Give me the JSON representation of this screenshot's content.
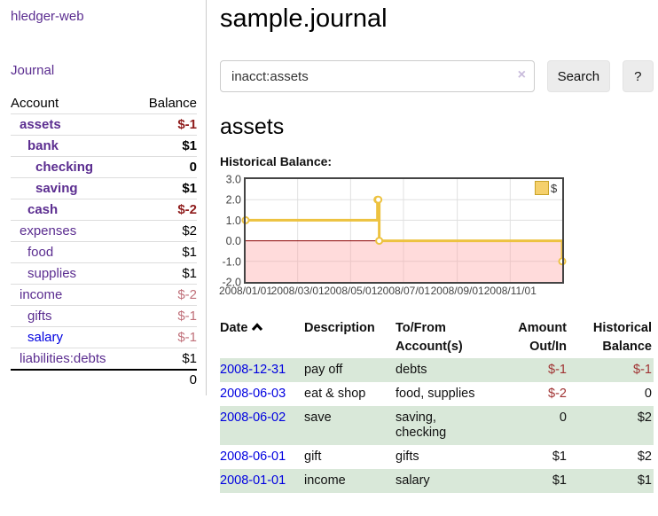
{
  "app": {
    "brand": "hledger-web",
    "nav_journal": "Journal"
  },
  "sidebar": {
    "headers": {
      "account": "Account",
      "balance": "Balance"
    },
    "accounts": [
      {
        "name": "assets",
        "balance": "$-1"
      },
      {
        "name": "bank",
        "balance": "$1"
      },
      {
        "name": "checking",
        "balance": "0"
      },
      {
        "name": "saving",
        "balance": "$1"
      },
      {
        "name": "cash",
        "balance": "$-2"
      },
      {
        "name": "expenses",
        "balance": "$2"
      },
      {
        "name": "food",
        "balance": "$1"
      },
      {
        "name": "supplies",
        "balance": "$1"
      },
      {
        "name": "income",
        "balance": "$-2"
      },
      {
        "name": "gifts",
        "balance": "$-1"
      },
      {
        "name": "salary",
        "balance": "$-1"
      },
      {
        "name": "liabilities:debts",
        "balance": "$1"
      }
    ],
    "total": "0"
  },
  "header": {
    "title": "sample.journal"
  },
  "search": {
    "value": "inacct:assets",
    "clear_icon": "×",
    "search_button": "Search",
    "help_button": "?"
  },
  "account_page": {
    "heading": "assets",
    "chart_title": "Historical Balance:"
  },
  "chart_data": {
    "type": "line",
    "style": "step",
    "title": "Historical Balance",
    "series": [
      {
        "name": "$",
        "color": "#edc240",
        "points": [
          {
            "date": "2008-01-01",
            "day": 0,
            "value": 1
          },
          {
            "date": "2008-06-01",
            "day": 152,
            "value": 2
          },
          {
            "date": "2008-06-02",
            "day": 153,
            "value": 2
          },
          {
            "date": "2008-06-03",
            "day": 154,
            "value": 0
          },
          {
            "date": "2008-12-31",
            "day": 365,
            "value": -1
          }
        ]
      }
    ],
    "x_tick_labels": [
      "2008/01/01",
      "2008/03/01",
      "2008/05/01",
      "2008/07/01",
      "2008/09/01",
      "2008/11/01"
    ],
    "x_tick_days": [
      0,
      60,
      121,
      182,
      244,
      305
    ],
    "xlim_days": [
      0,
      365
    ],
    "y_tick_labels": [
      "3.0",
      "2.0",
      "1.0",
      "0.0",
      "-1.0",
      "-2.0"
    ],
    "y_ticks": [
      3,
      2,
      1,
      0,
      -1,
      -2
    ],
    "ylim": [
      -2,
      3
    ],
    "grid": true,
    "legend": {
      "label": "$",
      "position": "top-right"
    },
    "colors": {
      "series": "#edc240",
      "legend_fill": "#f5d06c",
      "legend_border": "#c9a227",
      "negative_region": "rgba(255,160,160,0.38)",
      "zero_line": "#8b0000",
      "gridline": "#e0e0e0",
      "border": "#444444",
      "tick_text": "#444444"
    }
  },
  "transactions": {
    "headers": {
      "date": "Date",
      "description": "Description",
      "tofrom": "To/From Account(s)",
      "amount": "Amount Out/In",
      "historical": "Historical Balance"
    },
    "rows": [
      {
        "date": "2008-12-31",
        "description": "pay off",
        "tofrom": "debts",
        "amount": "$-1",
        "historical": "$-1"
      },
      {
        "date": "2008-06-03",
        "description": "eat & shop",
        "tofrom": "food, supplies",
        "amount": "$-2",
        "historical": "0"
      },
      {
        "date": "2008-06-02",
        "description": "save",
        "tofrom": "saving,\nchecking",
        "amount": "0",
        "historical": "$2"
      },
      {
        "date": "2008-06-01",
        "description": "gift",
        "tofrom": "gifts",
        "amount": "$1",
        "historical": "$2"
      },
      {
        "date": "2008-01-01",
        "description": "income",
        "tofrom": "salary",
        "amount": "$1",
        "historical": "$1"
      }
    ]
  }
}
